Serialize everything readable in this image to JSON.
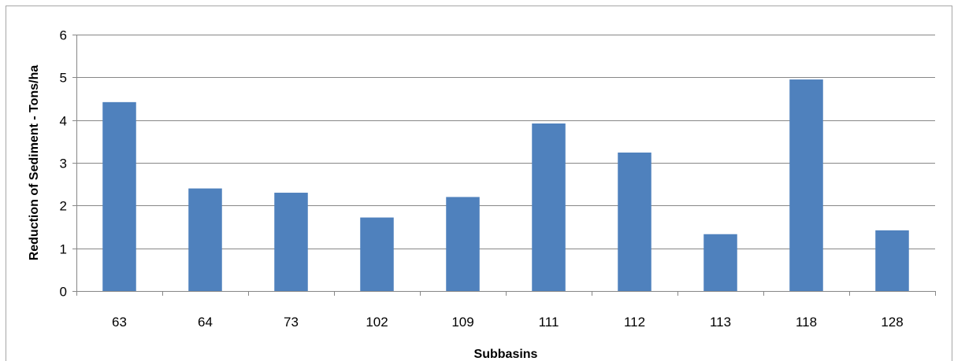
{
  "chart_data": {
    "type": "bar",
    "title": "",
    "xlabel": "Subbasins",
    "ylabel": "Reduction of Sediment - Tons/ha",
    "categories": [
      "63",
      "64",
      "73",
      "102",
      "109",
      "111",
      "112",
      "113",
      "118",
      "128"
    ],
    "values": [
      4.42,
      2.4,
      2.3,
      1.72,
      2.2,
      3.92,
      3.24,
      1.33,
      4.95,
      1.42
    ],
    "ylim": [
      0,
      6
    ],
    "yticks": [
      "0",
      "1",
      "2",
      "3",
      "4",
      "5",
      "6"
    ],
    "grid": true,
    "legend": "none",
    "bar_color": "#4f81bd",
    "grid_color": "#878787",
    "axis_color": "#878787"
  }
}
